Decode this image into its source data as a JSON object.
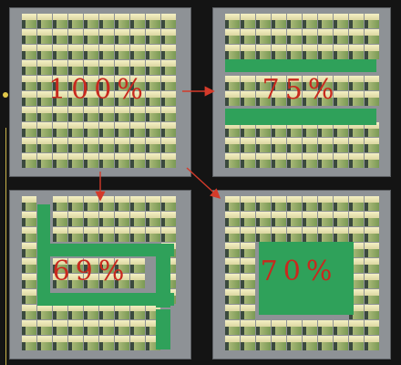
{
  "panels": [
    {
      "id": "top-left",
      "label": "100%"
    },
    {
      "id": "top-right",
      "label": "75%"
    },
    {
      "id": "bottom-left",
      "label": "69%"
    },
    {
      "id": "bottom-right",
      "label": "70%"
    }
  ],
  "colors": {
    "background": "#141414",
    "panel": "#8e9296",
    "block_top": "#efeabc",
    "block_face": "#93ab66",
    "disabled_region": "#2fa15a",
    "label": "#c8291e",
    "arrow": "#d43a2a"
  }
}
